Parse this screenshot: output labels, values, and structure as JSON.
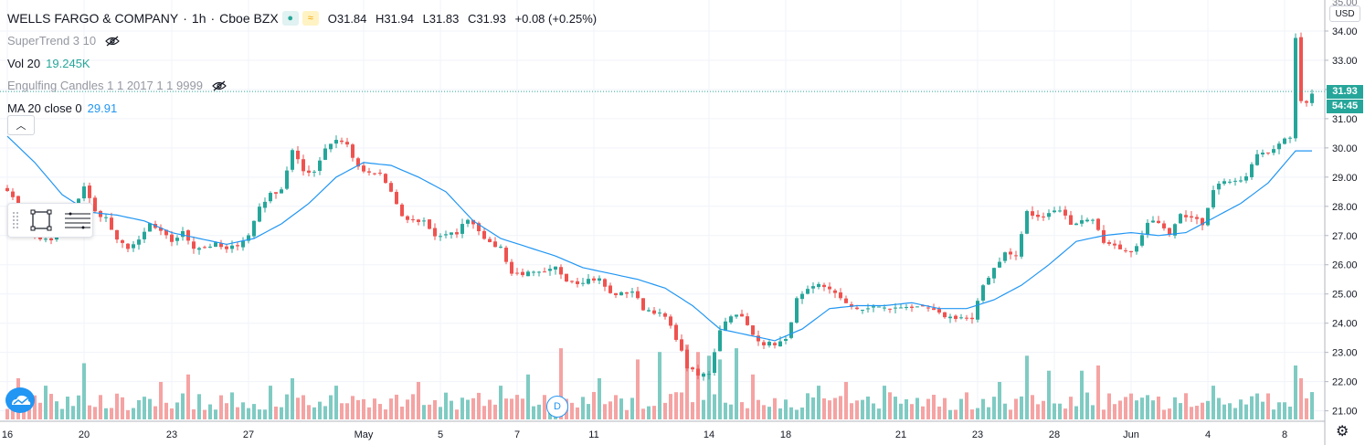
{
  "legend": {
    "symbol": "WELLS FARGO & COMPANY",
    "sep1": "·",
    "interval": "1h",
    "sep2": "·",
    "exchange": "Cboe BZX",
    "open": "O31.84",
    "high": "H31.94",
    "low": "L31.83",
    "close": "C31.93",
    "change": "+0.08 (+0.25%)",
    "indicators": [
      {
        "label": "SuperTrend 3 10",
        "value": "",
        "hidden": true
      },
      {
        "label": "Vol 20",
        "value": "19.245K",
        "hidden": false
      },
      {
        "label": "Engulfing Candles 1 1 2017 1 1 9999",
        "value": "",
        "hidden": true
      },
      {
        "label": "MA 20 close 0",
        "value": "29.91",
        "hidden": false
      }
    ]
  },
  "price_axis": {
    "currency": "USD",
    "last_price": "31.93",
    "countdown": "54:45"
  },
  "event_marker": "D",
  "colors": {
    "up": "#26a69a",
    "down": "#ef5350",
    "vol_up": "#7fcbc3",
    "vol_down": "#f5a3a3",
    "ma": "#2196f3",
    "grid": "#f0f3fa",
    "axis_text": "#131722"
  },
  "icons": {
    "eye_hidden": "eye-crossed-icon",
    "collapse": "chevron-up-icon",
    "rectangle_tool": "rectangle-icon",
    "lines_tool": "horizontal-lines-icon",
    "settings": "gear-icon",
    "logo": "tradingview-cloud-icon"
  },
  "chart_data": {
    "type": "candlestick",
    "ylim": [
      20.8,
      35.0
    ],
    "y_ticks": [
      21,
      22,
      23,
      24,
      25,
      26,
      27,
      28,
      29,
      30,
      31,
      32,
      33,
      34
    ],
    "x_tick_labels": [
      {
        "label": "16",
        "bar": 0
      },
      {
        "label": "20",
        "bar": 14
      },
      {
        "label": "23",
        "bar": 30
      },
      {
        "label": "27",
        "bar": 44
      },
      {
        "label": "May",
        "bar": 65
      },
      {
        "label": "5",
        "bar": 79
      },
      {
        "label": "7",
        "bar": 93
      },
      {
        "label": "11",
        "bar": 107
      },
      {
        "label": "14",
        "bar": 128
      },
      {
        "label": "18",
        "bar": 142
      },
      {
        "label": "21",
        "bar": 163
      },
      {
        "label": "23",
        "bar": 177
      },
      {
        "label": "28",
        "bar": 191
      },
      {
        "label": "Jun",
        "bar": 205
      },
      {
        "label": "4",
        "bar": 219
      },
      {
        "label": "8",
        "bar": 233
      }
    ],
    "price_anchors": [
      [
        0,
        28.6
      ],
      [
        4,
        27.2
      ],
      [
        6,
        26.9
      ],
      [
        8,
        26.8
      ],
      [
        10,
        27.1
      ],
      [
        14,
        28.7
      ],
      [
        16,
        27.8
      ],
      [
        18,
        27.6
      ],
      [
        20,
        26.8
      ],
      [
        22,
        26.6
      ],
      [
        24,
        26.8
      ],
      [
        26,
        27.4
      ],
      [
        28,
        27.1
      ],
      [
        30,
        26.8
      ],
      [
        32,
        27.1
      ],
      [
        34,
        26.6
      ],
      [
        36,
        26.6
      ],
      [
        38,
        26.7
      ],
      [
        40,
        26.5
      ],
      [
        42,
        26.7
      ],
      [
        44,
        27.0
      ],
      [
        46,
        28.0
      ],
      [
        48,
        28.4
      ],
      [
        50,
        28.6
      ],
      [
        52,
        29.9
      ],
      [
        54,
        29.2
      ],
      [
        56,
        29.2
      ],
      [
        58,
        30.0
      ],
      [
        60,
        30.3
      ],
      [
        62,
        30.1
      ],
      [
        64,
        29.3
      ],
      [
        66,
        29.1
      ],
      [
        68,
        29.1
      ],
      [
        70,
        28.5
      ],
      [
        72,
        27.6
      ],
      [
        74,
        27.5
      ],
      [
        76,
        27.5
      ],
      [
        78,
        27.0
      ],
      [
        80,
        27.0
      ],
      [
        82,
        27.1
      ],
      [
        84,
        27.6
      ],
      [
        86,
        27.2
      ],
      [
        88,
        26.7
      ],
      [
        90,
        26.6
      ],
      [
        92,
        25.7
      ],
      [
        94,
        25.7
      ],
      [
        96,
        25.7
      ],
      [
        98,
        25.7
      ],
      [
        100,
        25.9
      ],
      [
        102,
        25.5
      ],
      [
        104,
        25.4
      ],
      [
        106,
        25.5
      ],
      [
        108,
        25.5
      ],
      [
        110,
        25.0
      ],
      [
        112,
        25.0
      ],
      [
        114,
        25.1
      ],
      [
        116,
        24.5
      ],
      [
        118,
        24.4
      ],
      [
        120,
        24.2
      ],
      [
        122,
        23.5
      ],
      [
        124,
        22.5
      ],
      [
        126,
        22.2
      ],
      [
        128,
        22.3
      ],
      [
        130,
        23.8
      ],
      [
        132,
        24.3
      ],
      [
        134,
        24.2
      ],
      [
        136,
        23.6
      ],
      [
        138,
        23.3
      ],
      [
        140,
        23.3
      ],
      [
        142,
        23.4
      ],
      [
        144,
        24.8
      ],
      [
        146,
        25.1
      ],
      [
        148,
        25.3
      ],
      [
        150,
        25.2
      ],
      [
        152,
        24.8
      ],
      [
        154,
        24.6
      ],
      [
        156,
        24.4
      ],
      [
        158,
        24.6
      ],
      [
        160,
        24.5
      ],
      [
        162,
        24.5
      ],
      [
        164,
        24.6
      ],
      [
        166,
        24.5
      ],
      [
        168,
        24.5
      ],
      [
        170,
        24.3
      ],
      [
        172,
        24.2
      ],
      [
        174,
        24.2
      ],
      [
        176,
        24.1
      ],
      [
        178,
        25.3
      ],
      [
        180,
        25.9
      ],
      [
        182,
        26.4
      ],
      [
        184,
        26.3
      ],
      [
        186,
        27.8
      ],
      [
        188,
        27.6
      ],
      [
        190,
        27.8
      ],
      [
        192,
        27.9
      ],
      [
        194,
        27.4
      ],
      [
        196,
        27.5
      ],
      [
        198,
        27.6
      ],
      [
        200,
        26.7
      ],
      [
        202,
        26.6
      ],
      [
        204,
        26.4
      ],
      [
        206,
        26.6
      ],
      [
        208,
        27.4
      ],
      [
        210,
        27.5
      ],
      [
        212,
        27.1
      ],
      [
        214,
        27.8
      ],
      [
        216,
        27.6
      ],
      [
        218,
        27.4
      ],
      [
        220,
        28.6
      ],
      [
        222,
        28.9
      ],
      [
        224,
        28.8
      ],
      [
        226,
        29.0
      ],
      [
        228,
        29.8
      ],
      [
        230,
        29.9
      ],
      [
        232,
        30.1
      ],
      [
        234,
        30.4
      ],
      [
        235,
        33.7
      ],
      [
        236,
        31.6
      ],
      [
        237,
        31.6
      ],
      [
        238,
        31.9
      ]
    ],
    "ma20_anchors": [
      [
        0,
        30.4
      ],
      [
        5,
        29.5
      ],
      [
        10,
        28.4
      ],
      [
        15,
        27.8
      ],
      [
        20,
        27.7
      ],
      [
        25,
        27.5
      ],
      [
        30,
        27.1
      ],
      [
        35,
        26.9
      ],
      [
        40,
        26.7
      ],
      [
        45,
        26.9
      ],
      [
        50,
        27.4
      ],
      [
        55,
        28.1
      ],
      [
        60,
        29.0
      ],
      [
        65,
        29.5
      ],
      [
        70,
        29.4
      ],
      [
        75,
        29.0
      ],
      [
        80,
        28.5
      ],
      [
        85,
        27.5
      ],
      [
        90,
        26.9
      ],
      [
        95,
        26.6
      ],
      [
        100,
        26.3
      ],
      [
        105,
        25.9
      ],
      [
        110,
        25.7
      ],
      [
        115,
        25.5
      ],
      [
        120,
        25.2
      ],
      [
        125,
        24.6
      ],
      [
        130,
        23.8
      ],
      [
        135,
        23.6
      ],
      [
        140,
        23.4
      ],
      [
        145,
        23.8
      ],
      [
        150,
        24.5
      ],
      [
        155,
        24.6
      ],
      [
        160,
        24.6
      ],
      [
        165,
        24.7
      ],
      [
        170,
        24.5
      ],
      [
        175,
        24.5
      ],
      [
        180,
        24.8
      ],
      [
        185,
        25.3
      ],
      [
        190,
        26.0
      ],
      [
        195,
        26.8
      ],
      [
        200,
        27.0
      ],
      [
        205,
        27.1
      ],
      [
        210,
        27.0
      ],
      [
        215,
        27.1
      ],
      [
        220,
        27.6
      ],
      [
        225,
        28.1
      ],
      [
        230,
        28.8
      ],
      [
        235,
        29.9
      ]
    ],
    "volume_max": 1.0,
    "volume_spikes": [
      [
        2,
        0.55
      ],
      [
        7,
        0.45
      ],
      [
        14,
        0.75
      ],
      [
        28,
        0.5
      ],
      [
        33,
        0.6
      ],
      [
        48,
        0.45
      ],
      [
        52,
        0.55
      ],
      [
        60,
        0.45
      ],
      [
        75,
        0.5
      ],
      [
        90,
        0.45
      ],
      [
        95,
        0.6
      ],
      [
        101,
        0.95
      ],
      [
        108,
        0.55
      ],
      [
        115,
        0.8
      ],
      [
        119,
        0.9
      ],
      [
        124,
        1.0
      ],
      [
        126,
        0.9
      ],
      [
        128,
        0.85
      ],
      [
        130,
        0.8
      ],
      [
        133,
        0.95
      ],
      [
        136,
        0.6
      ],
      [
        148,
        0.45
      ],
      [
        153,
        0.5
      ],
      [
        160,
        0.45
      ],
      [
        181,
        0.5
      ],
      [
        186,
        0.85
      ],
      [
        190,
        0.65
      ],
      [
        196,
        0.65
      ],
      [
        199,
        0.72
      ],
      [
        215,
        0.35
      ],
      [
        220,
        0.45
      ],
      [
        235,
        0.72
      ],
      [
        236,
        0.55
      ]
    ]
  }
}
